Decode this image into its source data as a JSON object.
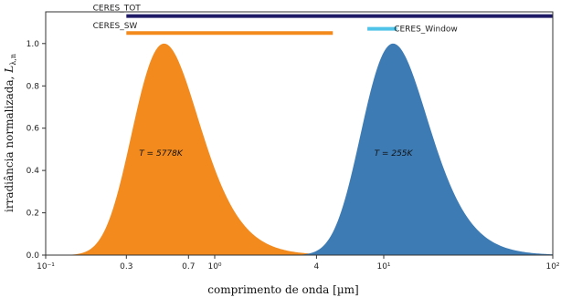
{
  "chart_data": {
    "type": "area",
    "xlabel": "comprimento de onda [µm]",
    "ylabel": "irradiância normalizada, ",
    "ylabel_symbol": "L",
    "ylabel_subscript": "λ,n",
    "x_scale": "log",
    "xlim": [
      0.1,
      100
    ],
    "ylim": [
      0,
      1.15
    ],
    "x_ticks": [
      {
        "value": 0.1,
        "label": "10⁻¹"
      },
      {
        "value": 0.3,
        "label": "0.3"
      },
      {
        "value": 0.7,
        "label": "0.7"
      },
      {
        "value": 1,
        "label": "10⁰"
      },
      {
        "value": 4,
        "label": "4"
      },
      {
        "value": 10,
        "label": "10¹"
      },
      {
        "value": 100,
        "label": "10²"
      }
    ],
    "y_ticks": [
      {
        "value": 0.0,
        "label": "0.0"
      },
      {
        "value": 0.2,
        "label": "0.2"
      },
      {
        "value": 0.4,
        "label": "0.4"
      },
      {
        "value": 0.6,
        "label": "0.6"
      },
      {
        "value": 0.8,
        "label": "0.8"
      },
      {
        "value": 1.0,
        "label": "1.0"
      }
    ],
    "grid": false,
    "series": [
      {
        "label": "T = 5778K",
        "temperature": 5778,
        "color": "#f28a1e",
        "peak_wavelength": 0.5,
        "label_at": [
          0.48,
          0.47
        ]
      },
      {
        "label": "T = 255K",
        "temperature": 255,
        "color": "#3d7bb5",
        "peak_wavelength": 11.4,
        "label_at": [
          11.4,
          0.47
        ]
      }
    ],
    "bands": [
      {
        "name": "CERES_TOT",
        "range": [
          0.3,
          100
        ],
        "color": "#1e1a66",
        "level": 1.13,
        "label_at_x": 0.19
      },
      {
        "name": "CERES_SW",
        "range": [
          0.3,
          5.0
        ],
        "color": "#f28a1e",
        "level": 1.05,
        "label_at_x": 0.19
      },
      {
        "name": "CERES_Window",
        "range": [
          8,
          12
        ],
        "color": "#4fc3e8",
        "level": 1.07,
        "label_at_x": 11.5
      }
    ]
  }
}
